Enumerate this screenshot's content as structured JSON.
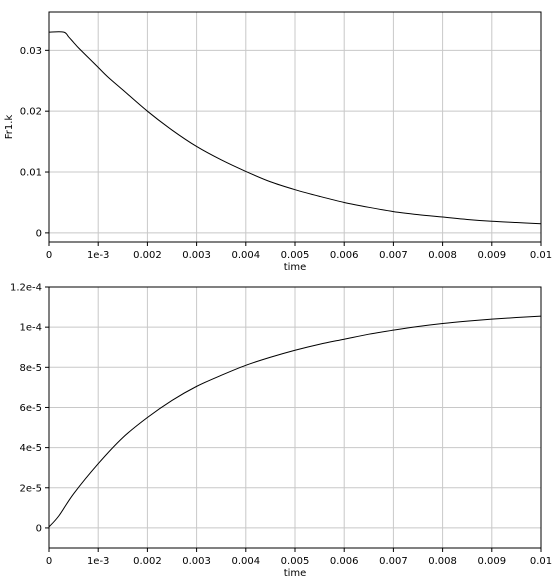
{
  "chart_data": [
    {
      "type": "line",
      "xlabel": "time",
      "ylabel": "Fr1.k",
      "xlim": [
        0,
        0.01
      ],
      "ylim": [
        -0.0015,
        0.0363
      ],
      "grid": true,
      "x_ticks": [
        0,
        0.001,
        0.002,
        0.003,
        0.004,
        0.005,
        0.006,
        0.007,
        0.008,
        0.009,
        0.01
      ],
      "x_tick_labels": [
        "0",
        "1e-3",
        "0.002",
        "0.003",
        "0.004",
        "0.005",
        "0.006",
        "0.007",
        "0.008",
        "0.009",
        "0.01"
      ],
      "y_ticks": [
        0,
        0.01,
        0.02,
        0.03
      ],
      "y_tick_labels": [
        "0",
        "0.01",
        "0.02",
        "0.03"
      ],
      "series": [
        {
          "x": [
            0,
            0.0003,
            0.0004,
            0.0005,
            0.0006,
            0.0008,
            0.001,
            0.0012,
            0.0015,
            0.002,
            0.0025,
            0.003,
            0.0035,
            0.004,
            0.0045,
            0.005,
            0.0055,
            0.006,
            0.0065,
            0.007,
            0.0075,
            0.008,
            0.0085,
            0.009,
            0.0095,
            0.01
          ],
          "y": [
            0.033,
            0.033,
            0.0322,
            0.0313,
            0.0304,
            0.0288,
            0.0272,
            0.0256,
            0.0235,
            0.02,
            0.0169,
            0.0142,
            0.012,
            0.0101,
            0.0084,
            0.0071,
            0.006,
            0.005,
            0.0042,
            0.0035,
            0.003,
            0.0026,
            0.0022,
            0.0019,
            0.0017,
            0.0015
          ]
        }
      ]
    },
    {
      "type": "line",
      "xlabel": "time",
      "ylabel": "",
      "xlim": [
        0,
        0.01
      ],
      "ylim": [
        -1e-05,
        0.00012
      ],
      "grid": true,
      "x_ticks": [
        0,
        0.001,
        0.002,
        0.003,
        0.004,
        0.005,
        0.006,
        0.007,
        0.008,
        0.009,
        0.01
      ],
      "x_tick_labels": [
        "0",
        "1e-3",
        "0.002",
        "0.003",
        "0.004",
        "0.005",
        "0.006",
        "0.007",
        "0.008",
        "0.009",
        "0.01"
      ],
      "y_ticks": [
        0,
        2e-05,
        4e-05,
        6e-05,
        8e-05,
        0.0001,
        0.00012
      ],
      "y_tick_labels": [
        "0",
        "2e-5",
        "4e-5",
        "6e-5",
        "8e-5",
        "1e-4",
        "1.2e-4"
      ],
      "series": [
        {
          "x": [
            0,
            0.0002,
            0.0005,
            0.001,
            0.0015,
            0.002,
            0.0025,
            0.003,
            0.0035,
            0.004,
            0.0045,
            0.005,
            0.0055,
            0.006,
            0.0065,
            0.007,
            0.0075,
            0.008,
            0.0085,
            0.009,
            0.0095,
            0.01
          ],
          "y": [
            5e-07,
            6e-06,
            1.7e-05,
            3.2e-05,
            4.5e-05,
            5.5e-05,
            6.35e-05,
            7.05e-05,
            7.6e-05,
            8.1e-05,
            8.5e-05,
            8.85e-05,
            9.15e-05,
            9.4e-05,
            9.65e-05,
            9.85e-05,
            0.0001003,
            0.0001018,
            0.000103,
            0.000104,
            0.0001048,
            0.0001055
          ]
        }
      ]
    }
  ]
}
